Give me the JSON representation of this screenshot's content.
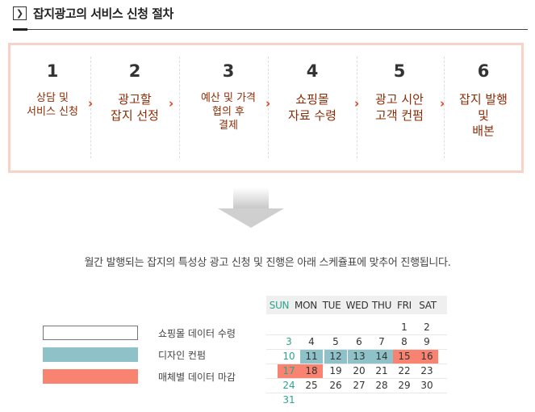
{
  "header": {
    "icon": "chevron-right-icon",
    "title": "잡지광고의 서비스 신청 절차"
  },
  "steps": [
    {
      "number": "1",
      "label": "상담 및\n서비스 신청"
    },
    {
      "number": "2",
      "label": "광고할\n잡지 선정"
    },
    {
      "number": "3",
      "label": "예산 및 가격\n협의 후\n결제"
    },
    {
      "number": "4",
      "label": "쇼핑몰\n자료 수령"
    },
    {
      "number": "5",
      "label": "광고 시안\n고객 컨펌"
    },
    {
      "number": "6",
      "label": "잡지 발행\n및\n배본"
    }
  ],
  "notice": "월간 발행되는 잡지의 특성상 광고 신청 및 진행은  아래 스케쥴표에 맞추어 진행됩니다.",
  "legend": [
    {
      "label": "쇼핑몰 데이터 수령",
      "color": "#ffffff"
    },
    {
      "label": "디자인 컨펌",
      "color": "#8fc1c9"
    },
    {
      "label": "매체별 데이터 마감",
      "color": "#f98371"
    }
  ],
  "calendar": {
    "weekdays": [
      "SUN",
      "MON",
      "TUE",
      "WED",
      "THU",
      "FRI",
      "SAT"
    ],
    "sunday_color": "#2aa38f",
    "weeks": [
      [
        "",
        "",
        "",
        "",
        "",
        "1",
        "2"
      ],
      [
        "3",
        "4",
        "5",
        "6",
        "7",
        "8",
        "9"
      ],
      [
        "10",
        "11",
        "12",
        "13",
        "14",
        "15",
        "16"
      ],
      [
        "17",
        "18",
        "19",
        "20",
        "21",
        "22",
        "23"
      ],
      [
        "24",
        "25",
        "26",
        "27",
        "28",
        "29",
        "30"
      ],
      [
        "31",
        "",
        "",
        "",
        "",
        "",
        ""
      ]
    ],
    "design_confirm_days": [
      "11",
      "12",
      "13",
      "14"
    ],
    "data_deadline_days": [
      "15",
      "16",
      "17",
      "18"
    ]
  }
}
